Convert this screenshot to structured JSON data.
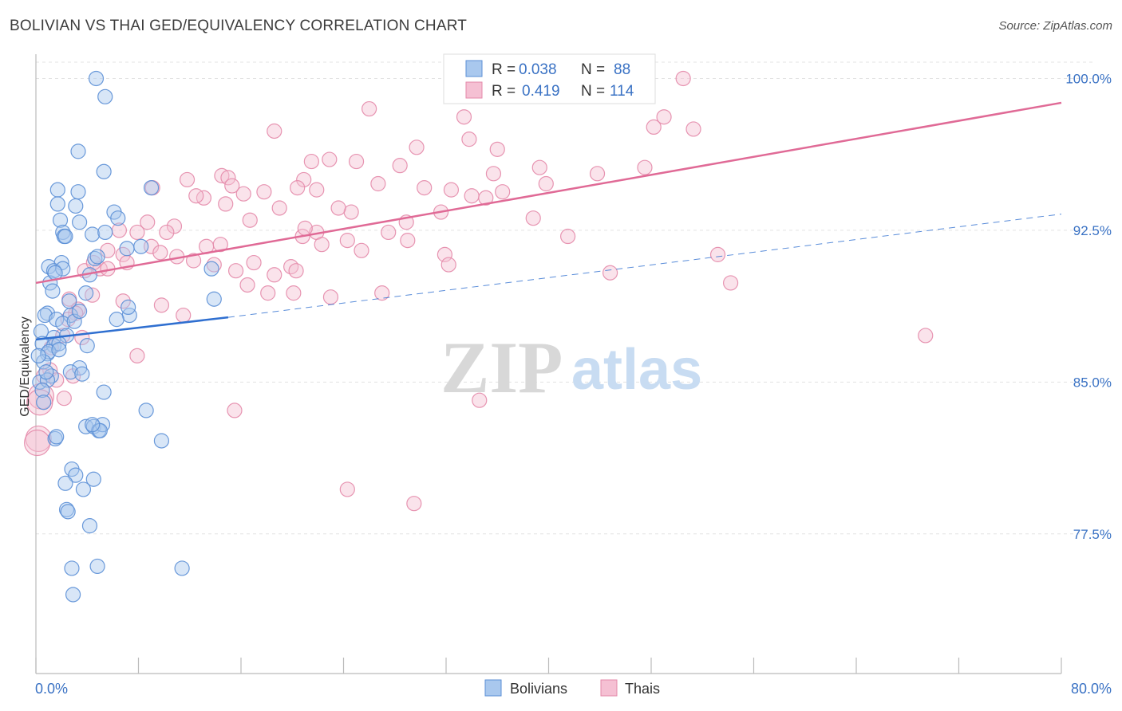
{
  "title": "BOLIVIAN VS THAI GED/EQUIVALENCY CORRELATION CHART",
  "source": "Source: ZipAtlas.com",
  "colors": {
    "bolivians_fill": "#a9c8ee",
    "bolivians_stroke": "#5b8fd6",
    "bolivians_line": "#2f6fd0",
    "thais_fill": "#f5c0d3",
    "thais_stroke": "#e489aa",
    "thais_line": "#e06a96",
    "tick_text": "#3a72c4",
    "grid": "#e3e3e3"
  },
  "legend": {
    "rows": [
      {
        "series": "Bolivians",
        "r_label": "R =",
        "r_value": "0.038",
        "n_label": "N =",
        "n_value": "88"
      },
      {
        "series": "Thais",
        "r_label": "R =",
        "r_value": "0.419",
        "n_label": "N =",
        "n_value": "114"
      }
    ]
  },
  "bottom_legend": [
    "Bolivians",
    "Thais"
  ],
  "watermark": {
    "zip": "ZIP",
    "atlas": "atlas"
  },
  "chart_data": {
    "type": "scatter",
    "title": "BOLIVIAN VS THAI GED/EQUIVALENCY CORRELATION CHART",
    "xlabel": "",
    "ylabel": "GED/Equivalency",
    "xlim": [
      0,
      80
    ],
    "ylim": [
      70.6,
      101.2
    ],
    "x_tick_labels": [
      "0.0%",
      "80.0%"
    ],
    "y_ticks": [
      77.5,
      85.0,
      92.5,
      100.0
    ],
    "y_tick_labels": [
      "77.5%",
      "85.0%",
      "92.5%",
      "100.0%"
    ],
    "grid": true,
    "legend_position": "top-center",
    "series": [
      {
        "name": "Bolivians",
        "trend": {
          "x": [
            0,
            15
          ],
          "y": [
            87.1,
            88.2
          ],
          "dashed_extension_to": [
            80,
            93.3
          ]
        },
        "points": [
          [
            4.7,
            100.0
          ],
          [
            5.4,
            99.1
          ],
          [
            3.3,
            96.4
          ],
          [
            5.3,
            95.4
          ],
          [
            1.7,
            94.5
          ],
          [
            3.3,
            94.4
          ],
          [
            9.0,
            94.6
          ],
          [
            1.7,
            93.8
          ],
          [
            3.1,
            93.7
          ],
          [
            6.1,
            93.4
          ],
          [
            6.4,
            93.1
          ],
          [
            1.9,
            93.0
          ],
          [
            3.4,
            92.9
          ],
          [
            2.1,
            92.4
          ],
          [
            2.2,
            92.2
          ],
          [
            4.4,
            92.3
          ],
          [
            5.4,
            92.4
          ],
          [
            8.2,
            91.7
          ],
          [
            7.1,
            91.6
          ],
          [
            4.6,
            91.1
          ],
          [
            2.0,
            90.9
          ],
          [
            1.0,
            90.7
          ],
          [
            1.4,
            90.5
          ],
          [
            2.1,
            90.6
          ],
          [
            4.2,
            90.3
          ],
          [
            13.7,
            90.6
          ],
          [
            1.1,
            89.9
          ],
          [
            1.3,
            89.5
          ],
          [
            3.9,
            89.4
          ],
          [
            0.9,
            88.4
          ],
          [
            0.7,
            88.3
          ],
          [
            2.7,
            88.3
          ],
          [
            1.6,
            88.1
          ],
          [
            7.3,
            88.3
          ],
          [
            6.3,
            88.1
          ],
          [
            13.9,
            89.1
          ],
          [
            7.2,
            88.7
          ],
          [
            2.1,
            87.9
          ],
          [
            0.4,
            87.5
          ],
          [
            1.4,
            87.2
          ],
          [
            2.4,
            87.3
          ],
          [
            0.5,
            86.9
          ],
          [
            1.4,
            86.8
          ],
          [
            1.8,
            86.9
          ],
          [
            4.0,
            86.8
          ],
          [
            0.9,
            86.4
          ],
          [
            1.0,
            86.5
          ],
          [
            0.6,
            86.0
          ],
          [
            3.4,
            85.7
          ],
          [
            2.7,
            85.5
          ],
          [
            1.2,
            85.3
          ],
          [
            0.3,
            85.0
          ],
          [
            0.9,
            85.1
          ],
          [
            0.5,
            84.6
          ],
          [
            5.3,
            84.5
          ],
          [
            8.6,
            83.6
          ],
          [
            3.9,
            82.8
          ],
          [
            4.5,
            82.8
          ],
          [
            4.9,
            82.6
          ],
          [
            5.2,
            82.9
          ],
          [
            1.5,
            82.2
          ],
          [
            1.6,
            82.3
          ],
          [
            9.8,
            82.1
          ],
          [
            2.8,
            80.7
          ],
          [
            3.1,
            80.4
          ],
          [
            4.5,
            80.2
          ],
          [
            2.3,
            80.0
          ],
          [
            3.7,
            79.7
          ],
          [
            2.4,
            78.7
          ],
          [
            2.5,
            78.6
          ],
          [
            4.2,
            77.9
          ],
          [
            2.8,
            75.8
          ],
          [
            4.8,
            75.9
          ],
          [
            11.4,
            75.8
          ],
          [
            2.9,
            74.5
          ],
          [
            0.2,
            86.3
          ],
          [
            0.8,
            85.5
          ],
          [
            1.8,
            86.6
          ],
          [
            2.6,
            89.0
          ],
          [
            3.0,
            88.0
          ],
          [
            4.8,
            91.2
          ],
          [
            2.3,
            92.2
          ],
          [
            1.5,
            90.4
          ],
          [
            0.6,
            84.0
          ],
          [
            3.6,
            85.4
          ],
          [
            5.0,
            82.6
          ],
          [
            4.4,
            82.9
          ],
          [
            3.4,
            88.5
          ]
        ]
      },
      {
        "name": "Thais",
        "trend": {
          "x": [
            0,
            80
          ],
          "y": [
            89.9,
            98.8
          ]
        },
        "points": [
          [
            50.5,
            100.0
          ],
          [
            26.0,
            98.5
          ],
          [
            33.4,
            98.1
          ],
          [
            49.0,
            98.1
          ],
          [
            18.6,
            97.4
          ],
          [
            48.2,
            97.6
          ],
          [
            51.3,
            97.5
          ],
          [
            33.8,
            97.0
          ],
          [
            29.7,
            96.6
          ],
          [
            36.0,
            96.5
          ],
          [
            22.9,
            96.0
          ],
          [
            21.5,
            95.9
          ],
          [
            25.0,
            95.9
          ],
          [
            28.4,
            95.7
          ],
          [
            39.3,
            95.6
          ],
          [
            35.7,
            95.3
          ],
          [
            14.5,
            95.2
          ],
          [
            20.9,
            95.0
          ],
          [
            43.8,
            95.3
          ],
          [
            47.5,
            95.6
          ],
          [
            15.0,
            95.1
          ],
          [
            11.8,
            95.0
          ],
          [
            9.1,
            94.6
          ],
          [
            16.2,
            94.3
          ],
          [
            17.8,
            94.4
          ],
          [
            13.1,
            94.1
          ],
          [
            15.3,
            94.7
          ],
          [
            20.4,
            94.6
          ],
          [
            21.9,
            94.5
          ],
          [
            26.7,
            94.8
          ],
          [
            30.3,
            94.6
          ],
          [
            32.4,
            94.5
          ],
          [
            34.0,
            94.2
          ],
          [
            35.1,
            94.1
          ],
          [
            36.4,
            94.4
          ],
          [
            39.8,
            94.8
          ],
          [
            12.5,
            94.2
          ],
          [
            14.8,
            93.8
          ],
          [
            19.0,
            93.6
          ],
          [
            24.6,
            93.4
          ],
          [
            23.6,
            93.6
          ],
          [
            28.9,
            92.9
          ],
          [
            31.6,
            93.4
          ],
          [
            38.8,
            93.1
          ],
          [
            16.7,
            93.0
          ],
          [
            8.7,
            92.9
          ],
          [
            10.8,
            92.7
          ],
          [
            10.2,
            92.4
          ],
          [
            6.5,
            92.5
          ],
          [
            7.9,
            92.4
          ],
          [
            20.8,
            92.2
          ],
          [
            21.9,
            92.4
          ],
          [
            22.3,
            91.8
          ],
          [
            24.3,
            92.0
          ],
          [
            27.5,
            92.4
          ],
          [
            29.0,
            92.0
          ],
          [
            41.5,
            92.2
          ],
          [
            13.3,
            91.7
          ],
          [
            14.4,
            91.8
          ],
          [
            9.0,
            91.7
          ],
          [
            6.8,
            91.3
          ],
          [
            5.6,
            91.5
          ],
          [
            7.1,
            90.9
          ],
          [
            9.7,
            91.4
          ],
          [
            11.0,
            91.2
          ],
          [
            12.3,
            91.0
          ],
          [
            13.9,
            90.8
          ],
          [
            17.0,
            90.9
          ],
          [
            25.4,
            91.5
          ],
          [
            31.9,
            91.3
          ],
          [
            32.2,
            90.8
          ],
          [
            53.2,
            91.3
          ],
          [
            5.0,
            90.6
          ],
          [
            3.8,
            90.5
          ],
          [
            5.6,
            90.6
          ],
          [
            4.5,
            90.9
          ],
          [
            15.6,
            90.5
          ],
          [
            18.6,
            90.3
          ],
          [
            19.9,
            90.7
          ],
          [
            20.3,
            90.5
          ],
          [
            44.8,
            90.4
          ],
          [
            16.5,
            89.8
          ],
          [
            18.1,
            89.4
          ],
          [
            20.1,
            89.4
          ],
          [
            23.0,
            89.2
          ],
          [
            27.0,
            89.4
          ],
          [
            54.2,
            89.9
          ],
          [
            4.4,
            89.3
          ],
          [
            2.6,
            89.1
          ],
          [
            6.8,
            89.0
          ],
          [
            3.3,
            88.6
          ],
          [
            3.1,
            88.4
          ],
          [
            2.5,
            88.1
          ],
          [
            9.8,
            88.8
          ],
          [
            2.1,
            87.3
          ],
          [
            3.6,
            87.2
          ],
          [
            1.2,
            86.7
          ],
          [
            7.9,
            86.3
          ],
          [
            1.1,
            85.6
          ],
          [
            0.6,
            85.3
          ],
          [
            1.6,
            85.1
          ],
          [
            2.9,
            85.3
          ],
          [
            0.4,
            84.3
          ],
          [
            2.2,
            84.2
          ],
          [
            0.3,
            84.0
          ],
          [
            34.6,
            84.1
          ],
          [
            15.5,
            83.6
          ],
          [
            24.3,
            79.7
          ],
          [
            29.5,
            79.0
          ],
          [
            69.4,
            87.3
          ],
          [
            0.2,
            82.2
          ],
          [
            0.1,
            82.0
          ],
          [
            11.5,
            88.3
          ],
          [
            21.0,
            92.6
          ]
        ]
      }
    ]
  }
}
